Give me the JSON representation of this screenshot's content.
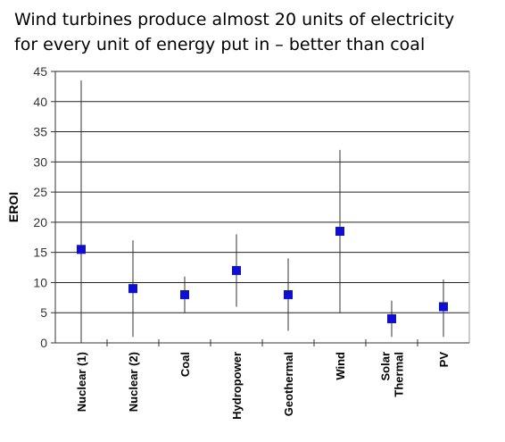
{
  "chart_data": {
    "type": "scatter",
    "title_lines": [
      "Wind turbines produce almost 20 units of electricity",
      "for every unit of energy put in – better than coal"
    ],
    "xlabel": "",
    "ylabel": "EROI",
    "ylim": [
      0,
      45
    ],
    "yticks": [
      0,
      5,
      10,
      15,
      20,
      25,
      30,
      35,
      40,
      45
    ],
    "grid": "horizontal",
    "categories": [
      [
        "Nuclear (1)"
      ],
      [
        "Nuclear (2)"
      ],
      [
        "Coal"
      ],
      [
        "Hydropower"
      ],
      [
        "Geothermal"
      ],
      [
        "Wind"
      ],
      [
        "Solar",
        "Thermal"
      ],
      [
        "PV"
      ]
    ],
    "values": [
      15.5,
      9,
      8,
      12,
      8,
      18.5,
      4,
      6
    ],
    "error_ranges": [
      [
        0,
        43.5
      ],
      [
        1,
        17
      ],
      [
        5,
        11
      ],
      [
        6,
        18
      ],
      [
        2,
        14
      ],
      [
        5,
        32
      ],
      [
        1,
        7
      ],
      [
        1,
        10.5
      ]
    ],
    "marker_color": "#1010cc",
    "range_line_color": "#333333",
    "grid_color": "#222222"
  }
}
